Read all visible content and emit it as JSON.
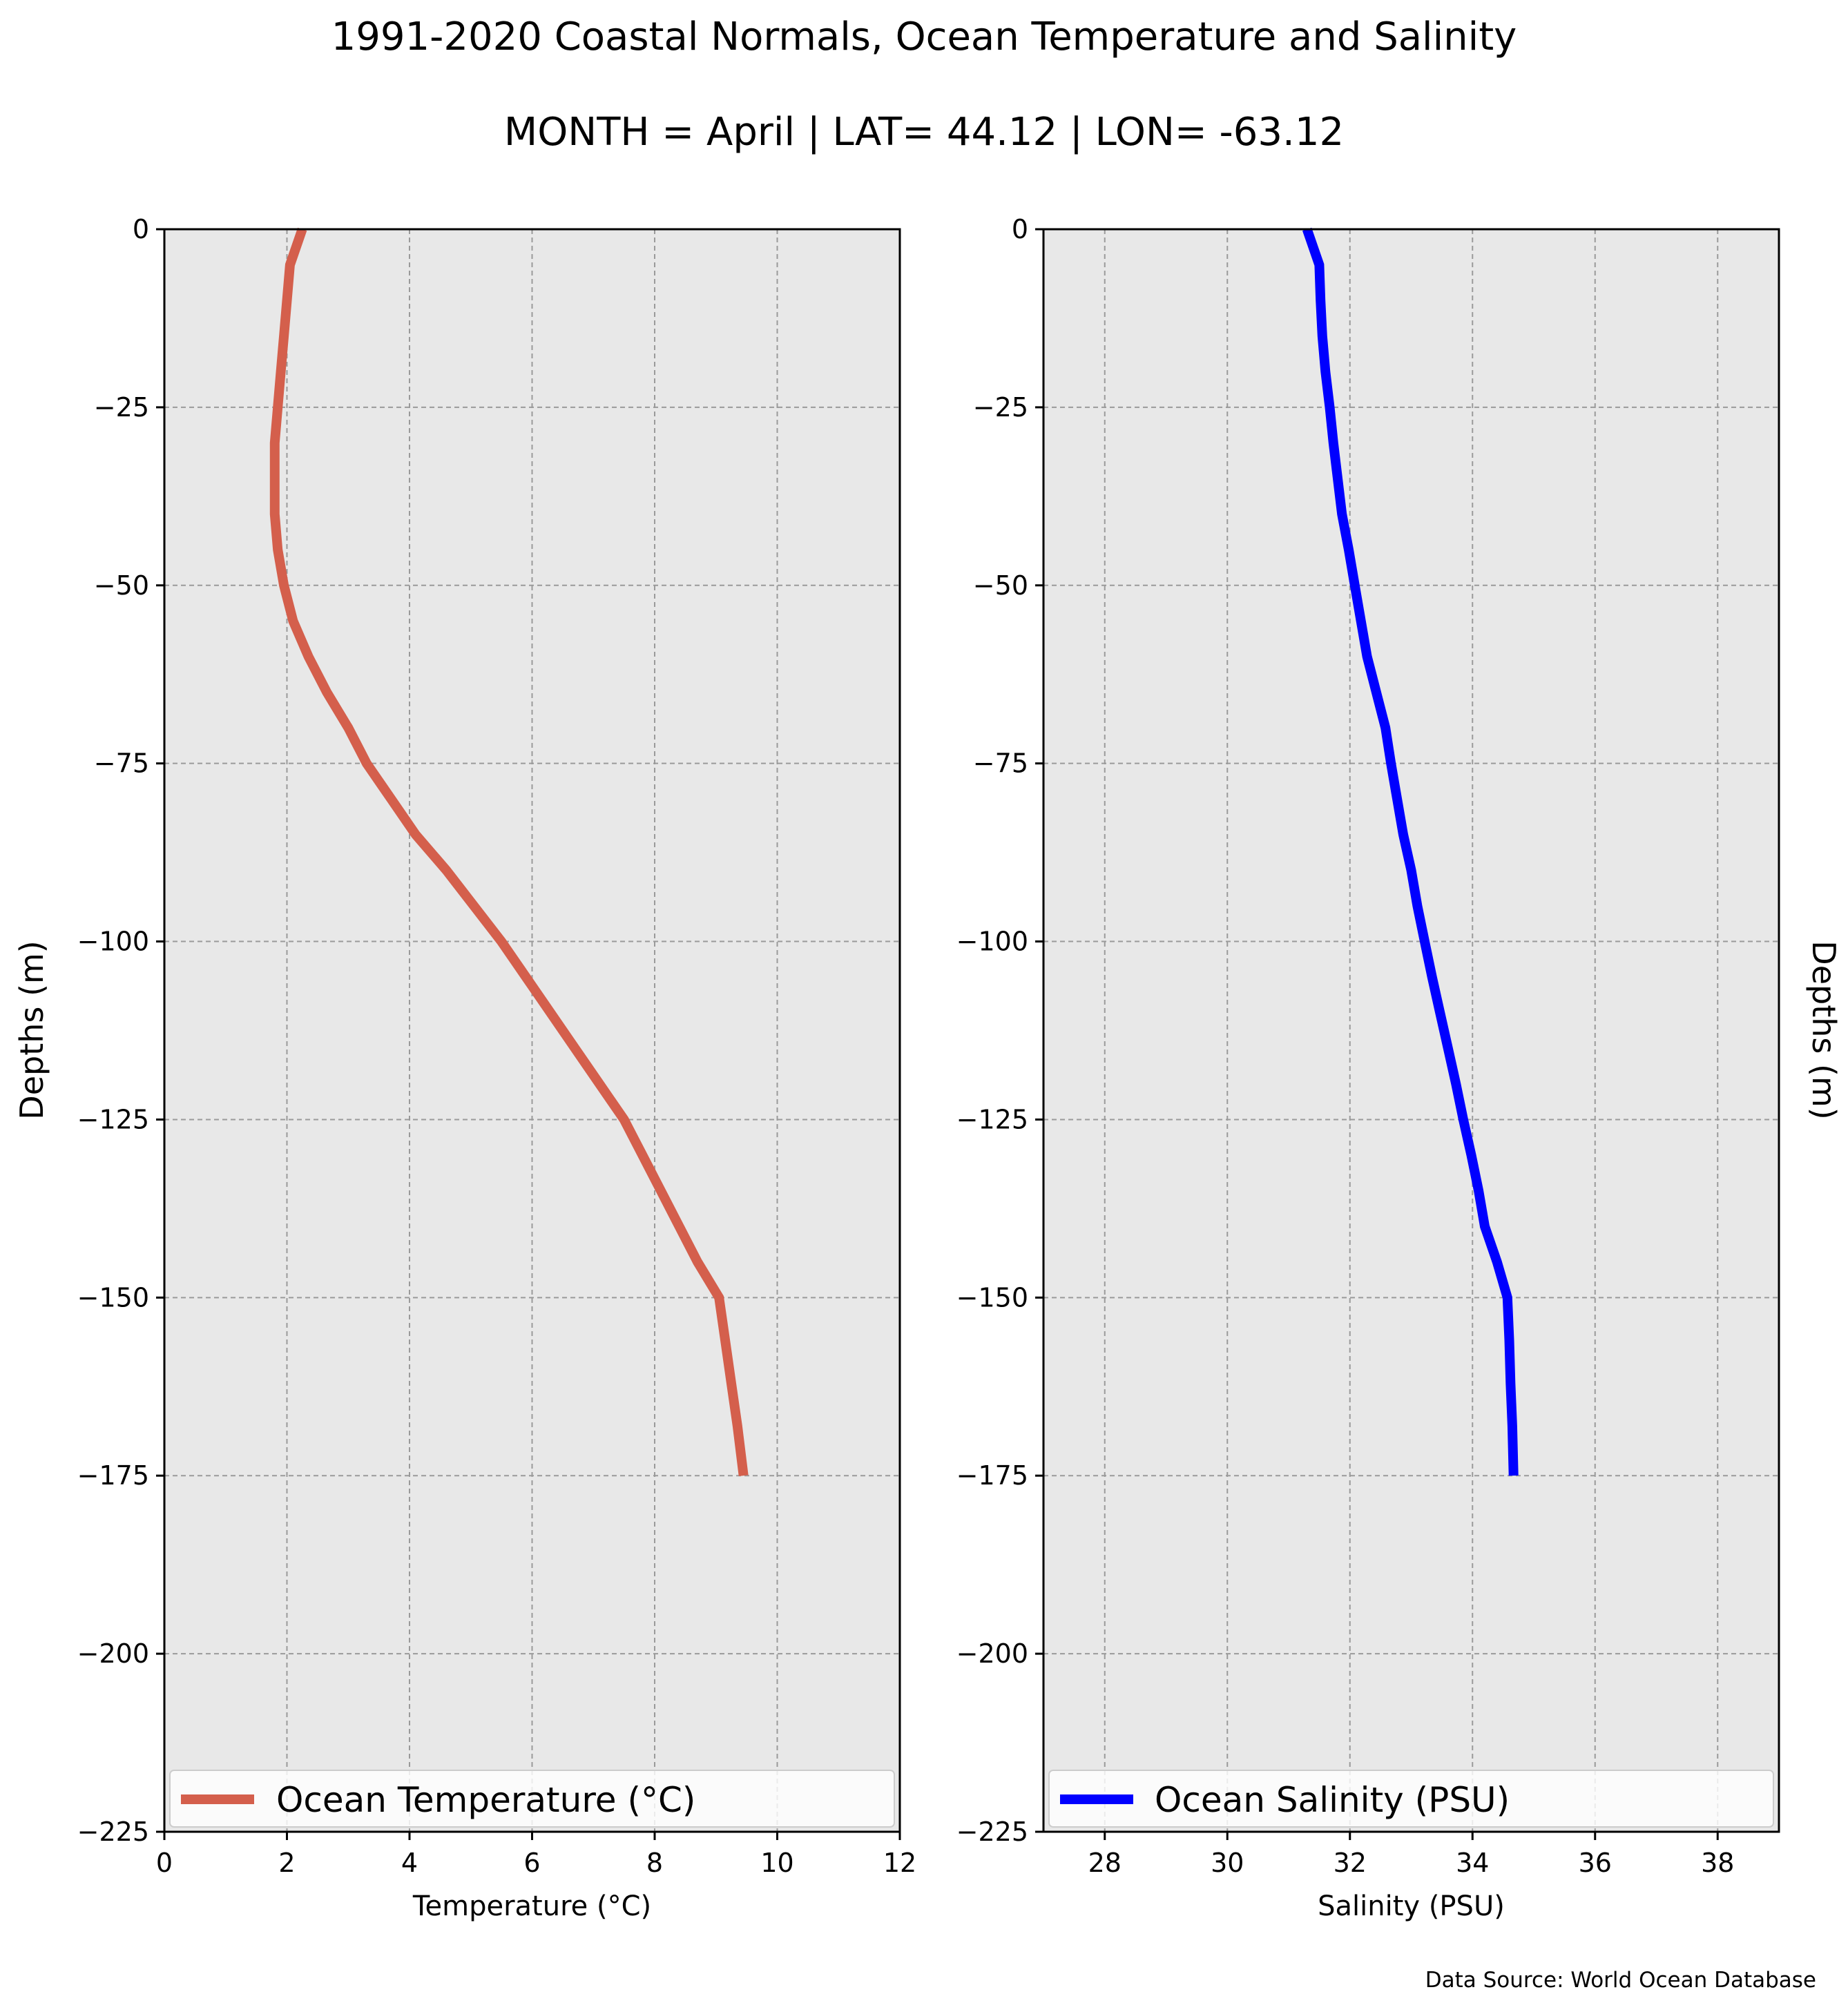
{
  "figure": {
    "title": "1991-2020 Coastal Normals, Ocean Temperature and Salinity",
    "subtitle": "MONTH = April | LAT= 44.12 | LON= -63.12",
    "source_note": "Data Source: World Ocean Database",
    "background_color": "#ffffff",
    "axes_background": "#e8e8e8",
    "grid_color": "#9a9a9a"
  },
  "chart_data": [
    {
      "type": "line",
      "xlabel": "Temperature (°C)",
      "ylabel": "Depths (m)",
      "xlim": [
        0,
        12
      ],
      "ylim": [
        -225,
        0
      ],
      "xticks": [
        0,
        2,
        4,
        6,
        8,
        10,
        12
      ],
      "yticks": [
        0,
        -25,
        -50,
        -75,
        -100,
        -125,
        -150,
        -175,
        -200,
        -225
      ],
      "grid": true,
      "legend_position": "lower-center",
      "series": [
        {
          "name": "Ocean Temperature (°C)",
          "color": "#d45f4c",
          "x": [
            2.25,
            2.05,
            2.0,
            1.95,
            1.9,
            1.85,
            1.8,
            1.8,
            1.8,
            1.85,
            1.95,
            2.1,
            2.35,
            2.65,
            3.0,
            3.3,
            3.7,
            4.1,
            4.6,
            5.05,
            5.5,
            5.9,
            6.3,
            6.7,
            7.1,
            7.5,
            7.8,
            8.1,
            8.4,
            8.7,
            9.05,
            9.15,
            9.25,
            9.35,
            9.45
          ],
          "y": [
            0,
            -5,
            -10,
            -15,
            -20,
            -25,
            -30,
            -35,
            -40,
            -45,
            -50,
            -55,
            -60,
            -65,
            -70,
            -75,
            -80,
            -85,
            -90,
            -95,
            -100,
            -105,
            -110,
            -115,
            -120,
            -125,
            -130,
            -135,
            -140,
            -145,
            -150,
            -156,
            -162,
            -168,
            -175
          ]
        }
      ]
    },
    {
      "type": "line",
      "xlabel": "Salinity (PSU)",
      "ylabel": "Depths (m)",
      "ylabel_side": "right",
      "xlim": [
        27,
        39
      ],
      "ylim": [
        -225,
        0
      ],
      "xticks": [
        28,
        30,
        32,
        34,
        36,
        38
      ],
      "yticks": [
        0,
        -25,
        -50,
        -75,
        -100,
        -125,
        -150,
        -175,
        -200,
        -225
      ],
      "grid": true,
      "legend_position": "lower-center",
      "series": [
        {
          "name": "Ocean Salinity (PSU)",
          "color": "#0000ff",
          "x": [
            31.3,
            31.5,
            31.52,
            31.55,
            31.6,
            31.67,
            31.73,
            31.8,
            31.87,
            31.98,
            32.08,
            32.18,
            32.28,
            32.43,
            32.58,
            32.67,
            32.77,
            32.87,
            33.0,
            33.1,
            33.22,
            33.34,
            33.47,
            33.6,
            33.73,
            33.85,
            33.98,
            34.1,
            34.2,
            34.4,
            34.57,
            34.6,
            34.62,
            34.65,
            34.67
          ],
          "y": [
            0,
            -5,
            -10,
            -15,
            -20,
            -25,
            -30,
            -35,
            -40,
            -45,
            -50,
            -55,
            -60,
            -65,
            -70,
            -75,
            -80,
            -85,
            -90,
            -95,
            -100,
            -105,
            -110,
            -115,
            -120,
            -125,
            -130,
            -135,
            -140,
            -145,
            -150,
            -156,
            -162,
            -168,
            -175
          ]
        }
      ]
    }
  ]
}
